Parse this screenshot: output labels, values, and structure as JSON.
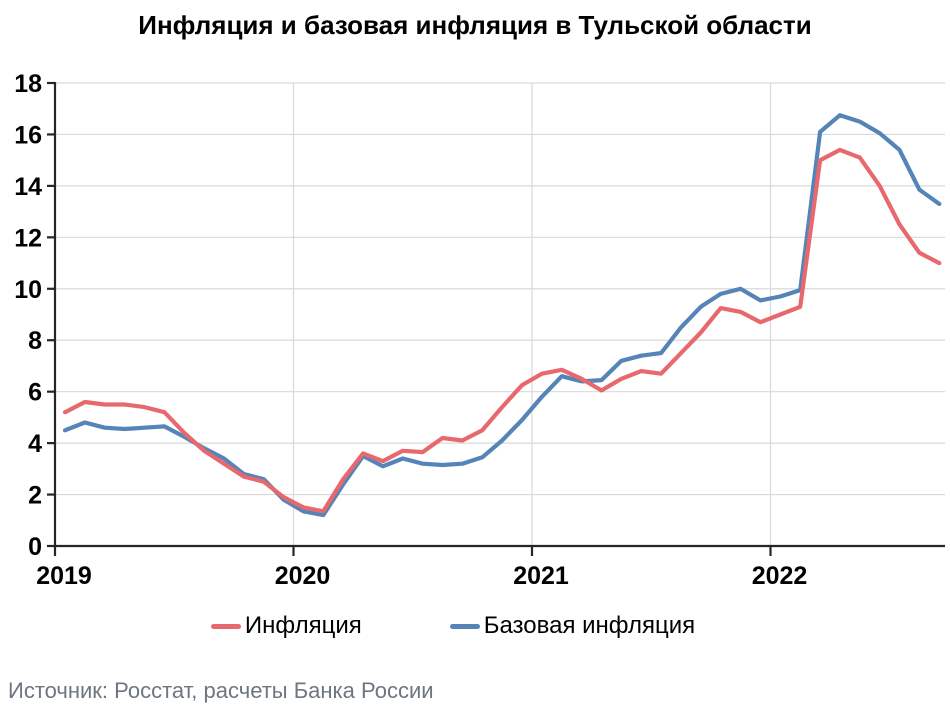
{
  "title": "Инфляция и базовая инфляция в Тульской области",
  "source": "Источник: Росстат, расчеты Банка России",
  "legend": [
    {
      "label": "Инфляция",
      "color": "#e8696d"
    },
    {
      "label": "Базовая инфляция",
      "color": "#5584b8"
    }
  ],
  "chart_data": {
    "type": "line",
    "title": "Инфляция и базовая инфляция в Тульской области",
    "x": [
      "2019-01",
      "2019-02",
      "2019-03",
      "2019-04",
      "2019-05",
      "2019-06",
      "2019-07",
      "2019-08",
      "2019-09",
      "2019-10",
      "2019-11",
      "2019-12",
      "2020-01",
      "2020-02",
      "2020-03",
      "2020-04",
      "2020-05",
      "2020-06",
      "2020-07",
      "2020-08",
      "2020-09",
      "2020-10",
      "2020-11",
      "2020-12",
      "2021-01",
      "2021-02",
      "2021-03",
      "2021-04",
      "2021-05",
      "2021-06",
      "2021-07",
      "2021-08",
      "2021-09",
      "2021-10",
      "2021-11",
      "2021-12",
      "2022-01",
      "2022-02",
      "2022-03",
      "2022-04",
      "2022-05",
      "2022-06",
      "2022-07",
      "2022-08",
      "2022-09"
    ],
    "series": [
      {
        "name": "Инфляция",
        "color": "#e8696d",
        "values": [
          5.2,
          5.6,
          5.5,
          5.5,
          5.4,
          5.2,
          4.4,
          3.7,
          3.2,
          2.7,
          2.5,
          1.9,
          1.5,
          1.35,
          2.6,
          3.6,
          3.3,
          3.7,
          3.65,
          4.2,
          4.1,
          4.5,
          5.4,
          6.25,
          6.7,
          6.85,
          6.5,
          6.05,
          6.5,
          6.8,
          6.7,
          7.5,
          8.3,
          9.25,
          9.1,
          8.7,
          9.0,
          9.3,
          15.0,
          15.4,
          15.1,
          14.0,
          12.5,
          11.4,
          11.0
        ]
      },
      {
        "name": "Базовая инфляция",
        "color": "#5584b8",
        "values": [
          4.5,
          4.8,
          4.6,
          4.55,
          4.6,
          4.65,
          4.25,
          3.8,
          3.4,
          2.8,
          2.6,
          1.8,
          1.35,
          1.2,
          2.4,
          3.5,
          3.1,
          3.4,
          3.2,
          3.15,
          3.2,
          3.45,
          4.1,
          4.9,
          5.8,
          6.6,
          6.4,
          6.45,
          7.2,
          7.4,
          7.5,
          8.5,
          9.3,
          9.8,
          10.0,
          9.55,
          9.7,
          9.95,
          16.1,
          16.75,
          16.5,
          16.05,
          15.4,
          13.85,
          13.3
        ]
      }
    ],
    "xlabel": "",
    "ylabel": "",
    "ylim": [
      0,
      18
    ],
    "y_ticks": [
      0,
      2,
      4,
      6,
      8,
      10,
      12,
      14,
      16,
      18
    ],
    "x_tick_labels": [
      "2019",
      "2020",
      "2021",
      "2022"
    ],
    "grid": true,
    "legend_position": "bottom",
    "axis_color": "#262626",
    "grid_color": "#d9d9d9",
    "tick_label_color": "#000000"
  }
}
